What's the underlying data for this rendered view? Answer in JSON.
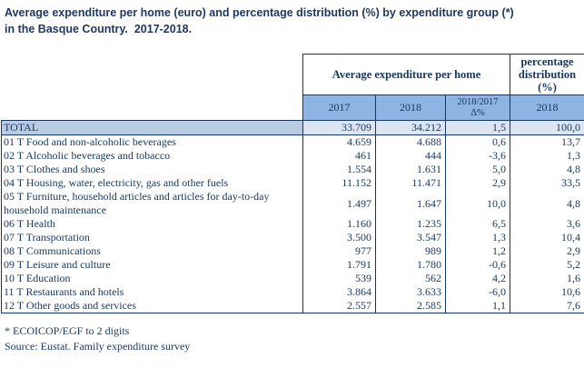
{
  "title": {
    "line1": "Average expenditure per home (euro) and percentage distribution (%) by expenditure group (*)",
    "line2": "in the Basque Country.  2017-2018."
  },
  "chart_data": {
    "type": "table",
    "title": "Average expenditure per home (euro) and percentage distribution (%) by expenditure group (*) in the Basque Country. 2017-2018.",
    "column_groups": [
      {
        "label": "Average expenditure per home",
        "span": 3
      },
      {
        "label": "percentage distribution (%)",
        "span": 1
      }
    ],
    "sub_headers": [
      "2017",
      "2018",
      "2018/2017\nΔ%",
      "2018"
    ],
    "rows": [
      {
        "label": "TOTAL",
        "values": [
          "33.709",
          "34.212",
          "1,5",
          "100,0"
        ],
        "is_total": true
      },
      {
        "label": "01 T Food and non-alcoholic beverages",
        "values": [
          "4.659",
          "4.688",
          "0,6",
          "13,7"
        ],
        "is_total": false
      },
      {
        "label": "02 T Alcoholic beverages and tobacco",
        "values": [
          "461",
          "444",
          "-3,6",
          "1,3"
        ],
        "is_total": false
      },
      {
        "label": "03 T Clothes and shoes",
        "values": [
          "1.554",
          "1.631",
          "5,0",
          "4,8"
        ],
        "is_total": false
      },
      {
        "label": "04 T Housing, water, electricity, gas and other fuels",
        "values": [
          "11.152",
          "11.471",
          "2,9",
          "33,5"
        ],
        "is_total": false
      },
      {
        "label": "05 T Furniture, household articles and articles for day-to-day household maintenance",
        "values": [
          "1.497",
          "1.647",
          "10,0",
          "4,8"
        ],
        "is_total": false
      },
      {
        "label": "06 T Health",
        "values": [
          "1.160",
          "1.235",
          "6,5",
          "3,6"
        ],
        "is_total": false
      },
      {
        "label": "07 T Transportation",
        "values": [
          "3.500",
          "3.547",
          "1,3",
          "10,4"
        ],
        "is_total": false
      },
      {
        "label": "08 T Communications",
        "values": [
          "977",
          "989",
          "1,2",
          "2,9"
        ],
        "is_total": false
      },
      {
        "label": "09 T Leisure and culture",
        "values": [
          "1.791",
          "1.780",
          "-0,6",
          "5,2"
        ],
        "is_total": false
      },
      {
        "label": "10 T Education",
        "values": [
          "539",
          "562",
          "4,2",
          "1,6"
        ],
        "is_total": false
      },
      {
        "label": "11 T Restaurants and hotels",
        "values": [
          "3.864",
          "3.633",
          "-6,0",
          "10,6"
        ],
        "is_total": false
      },
      {
        "label": "12 T Other goods and services",
        "values": [
          "2.557",
          "2.585",
          "1,1",
          "7,6"
        ],
        "is_total": false
      }
    ],
    "footnotes": [
      "* ECOICOP/EGF to 2 digits",
      "Source: Eustat. Family expenditure survey"
    ]
  },
  "colors": {
    "title_text": "#1F3864",
    "table_text": "#17375E",
    "border": "#17375E",
    "subheader_fill": "#8DB4E2",
    "total_label_fill": "#B8CCE4",
    "total_value_fill": "#DCE6F2"
  }
}
